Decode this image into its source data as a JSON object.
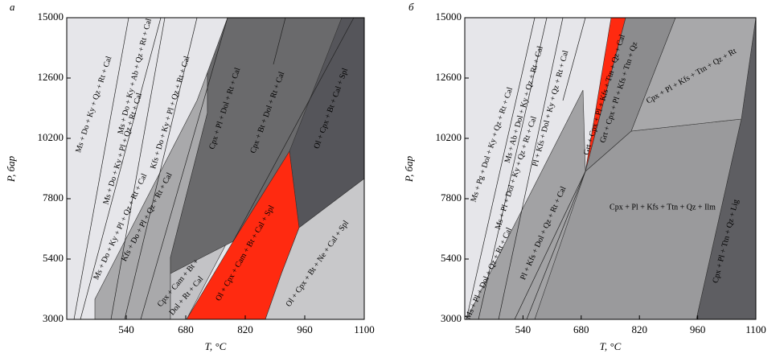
{
  "chart_data": [
    {
      "type": "phase-diagram",
      "panel": "а",
      "xlabel": "T, °C",
      "ylabel": "P, бар",
      "xlim": [
        400,
        1100
      ],
      "ylim": [
        3000,
        15000
      ],
      "xticks": [
        540,
        680,
        820,
        960,
        1100
      ],
      "yticks": [
        3000,
        5400,
        7800,
        10200,
        12600,
        15000
      ],
      "fields": [
        "Ms + Do + Ky + Qz + Rt + Cal",
        "Ms + Do + Ky + Ab + Qz + Rt + Cal",
        "Ms + Do + Ky + Pl + Qz + Rt + Cal",
        "Kfs + Do + Ky + Pl + Qz + Rt + Cal",
        "Ms + Do + Ky + Pl + Qz + Rt + Cal",
        "Kfs + Do + Pl + Qz + Rt + Cal",
        "Cpx + Pl + Dol + Rt + Cal",
        "Cpx + Bt + Dol + Rt + Cal",
        "Ol + Cpx + Bt + Cal + Spl",
        "Cpx + Cam + Bt +",
        "Dol + Rt + Cal",
        "Ol + Cpx + Cam + Bt + Cal + Spl",
        "Ol + Cpx + Bt + Ne + Cal + Spl"
      ]
    },
    {
      "type": "phase-diagram",
      "panel": "б",
      "xlabel": "T, °C",
      "ylabel": "P, бар",
      "xlim": [
        400,
        1100
      ],
      "ylim": [
        3000,
        15000
      ],
      "xticks": [
        540,
        680,
        820,
        960,
        1100
      ],
      "yticks": [
        3000,
        5400,
        7800,
        10200,
        12600,
        15000
      ],
      "fields": [
        "Ms + Pg + Dol + Ky + Qz + Rt + Cal",
        "Ms + Ab + Dol + Ky + Qz + Rt + Cal",
        "Ms + Pl + Dol + Ky + Qz + Rt + Cal",
        "Pl + Kfs + Dol + Ky + Qz + Rt + Cal",
        "Ms + Pl + Dol + Qz + Rt + Cal",
        "Pl + Kfs + Dol + Qz + Rt + Cal",
        "Grt + Cpx + Pl + Kfs + Ttn + Qz + Cal",
        "Grt + Cpx + Pl + Kfs + Ttn + Qz",
        "Cpx + Pl + Kfs + Ttn + Qz + Rt",
        "Cpx + Pl + Kfs + Ttn + Qz + Ilm",
        "Cpx + Pl + Ttn + Qz + Lig"
      ]
    }
  ]
}
